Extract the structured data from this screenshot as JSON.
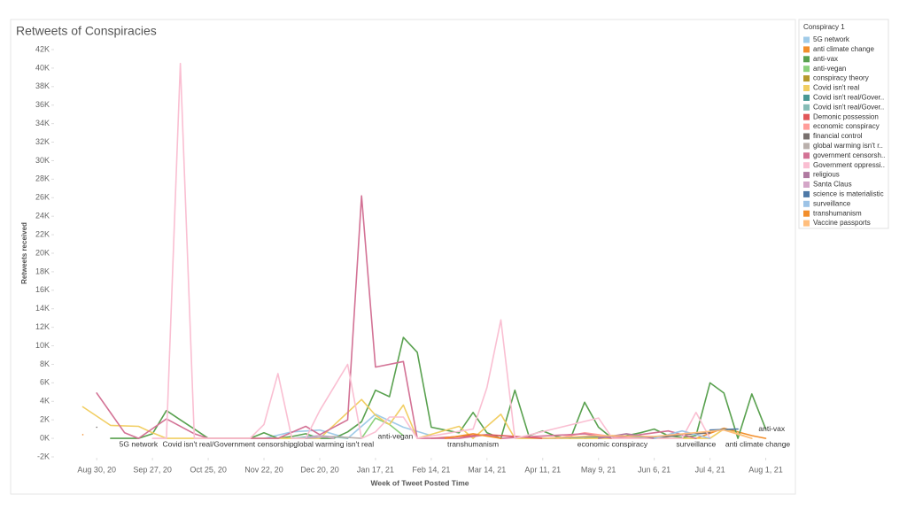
{
  "chart_data": {
    "type": "line",
    "title": "Retweets of Conspiracies",
    "x_label": "Week of Tweet Posted Time",
    "y_label": "Retweets received",
    "legend_title": "Conspiracy 1",
    "xlim": [
      "2020-08-09",
      "2021-08-15"
    ],
    "xticks": [
      {
        "value": "2020-08-30",
        "label": "Aug 30, 20"
      },
      {
        "value": "2020-09-27",
        "label": "Sep 27, 20"
      },
      {
        "value": "2020-10-25",
        "label": "Oct 25, 20"
      },
      {
        "value": "2020-11-22",
        "label": "Nov 22, 20"
      },
      {
        "value": "2020-12-20",
        "label": "Dec 20, 20"
      },
      {
        "value": "2021-01-17",
        "label": "Jan 17, 21"
      },
      {
        "value": "2021-02-14",
        "label": "Feb 14, 21"
      },
      {
        "value": "2021-03-14",
        "label": "Mar 14, 21"
      },
      {
        "value": "2021-04-11",
        "label": "Apr 11, 21"
      },
      {
        "value": "2021-05-09",
        "label": "May 9, 21"
      },
      {
        "value": "2021-06-06",
        "label": "Jun 6, 21"
      },
      {
        "value": "2021-07-04",
        "label": "Jul 4, 21"
      },
      {
        "value": "2021-08-01",
        "label": "Aug 1, 21"
      }
    ],
    "ylim": [
      -2000,
      42000
    ],
    "yticks": [
      {
        "value": -2000,
        "label": "-2K"
      },
      {
        "value": 0,
        "label": "0K"
      },
      {
        "value": 2000,
        "label": "2K"
      },
      {
        "value": 4000,
        "label": "4K"
      },
      {
        "value": 6000,
        "label": "6K"
      },
      {
        "value": 8000,
        "label": "8K"
      },
      {
        "value": 10000,
        "label": "10K"
      },
      {
        "value": 12000,
        "label": "12K"
      },
      {
        "value": 14000,
        "label": "14K"
      },
      {
        "value": 16000,
        "label": "16K"
      },
      {
        "value": 18000,
        "label": "18K"
      },
      {
        "value": 20000,
        "label": "20K"
      },
      {
        "value": 22000,
        "label": "22K"
      },
      {
        "value": 24000,
        "label": "24K"
      },
      {
        "value": 26000,
        "label": "26K"
      },
      {
        "value": 28000,
        "label": "28K"
      },
      {
        "value": 30000,
        "label": "30K"
      },
      {
        "value": 32000,
        "label": "32K"
      },
      {
        "value": 34000,
        "label": "34K"
      },
      {
        "value": 36000,
        "label": "36K"
      },
      {
        "value": 38000,
        "label": "38K"
      },
      {
        "value": 40000,
        "label": "40K"
      },
      {
        "value": 42000,
        "label": "42K"
      }
    ],
    "series": [
      {
        "name": "5G network",
        "color": "#a0cbe8",
        "x": [
          "2020-11-22",
          "2020-12-06",
          "2020-12-20",
          "2021-01-03",
          "2021-01-17",
          "2021-01-31",
          "2021-02-14"
        ],
        "values": [
          0,
          700,
          900,
          0,
          2600,
          1200,
          300
        ]
      },
      {
        "name": "anti climate change",
        "color": "#f28e2b",
        "x": [
          "2021-06-27",
          "2021-07-11",
          "2021-07-25",
          "2021-08-01"
        ],
        "values": [
          0,
          1100,
          300,
          0
        ]
      },
      {
        "name": "anti-vax",
        "color": "#59a14f",
        "x": [
          "2020-09-06",
          "2020-09-13",
          "2020-09-20",
          "2020-09-27",
          "2020-10-04",
          "2020-10-11",
          "2020-10-18",
          "2020-10-25",
          "2020-11-01",
          "2020-11-08",
          "2020-11-15",
          "2020-11-22",
          "2020-11-29",
          "2020-12-06",
          "2020-12-13",
          "2020-12-20",
          "2020-12-27",
          "2021-01-03",
          "2021-01-10",
          "2021-01-17",
          "2021-01-24",
          "2021-01-31",
          "2021-02-07",
          "2021-02-14",
          "2021-02-21",
          "2021-02-28",
          "2021-03-07",
          "2021-03-14",
          "2021-03-21",
          "2021-03-28",
          "2021-04-04",
          "2021-04-11",
          "2021-04-18",
          "2021-04-25",
          "2021-05-02",
          "2021-05-09",
          "2021-05-16",
          "2021-05-23",
          "2021-05-30",
          "2021-06-06",
          "2021-06-13",
          "2021-06-20",
          "2021-06-27",
          "2021-07-04",
          "2021-07-11",
          "2021-07-18",
          "2021-07-25",
          "2021-08-01"
        ],
        "values": [
          0,
          0,
          0,
          500,
          3000,
          2000,
          1000,
          0,
          0,
          0,
          0,
          600,
          0,
          200,
          500,
          0,
          0,
          700,
          1800,
          5200,
          4500,
          10900,
          9300,
          1200,
          900,
          600,
          2800,
          600,
          0,
          5200,
          300,
          800,
          200,
          0,
          3900,
          1200,
          0,
          300,
          600,
          1000,
          300,
          100,
          300,
          6000,
          4900,
          0,
          4800,
          1000
        ]
      },
      {
        "name": "anti-vegan",
        "color": "#8cd17d",
        "x": [
          "2021-01-10",
          "2021-01-17",
          "2021-01-24",
          "2021-01-31"
        ],
        "values": [
          0,
          2200,
          1500,
          300
        ]
      },
      {
        "name": "conspiracy theory",
        "color": "#b6992d",
        "x": [
          "2021-05-02",
          "2021-05-16",
          "2021-05-30",
          "2021-06-13"
        ],
        "values": [
          0,
          300,
          200,
          0
        ]
      },
      {
        "name": "Covid isn't real",
        "color": "#f1ce63",
        "x": [
          "2020-08-23",
          "2020-09-06",
          "2020-09-20",
          "2020-09-27",
          "2020-10-04",
          "2020-12-20",
          "2021-01-10",
          "2021-01-17",
          "2021-01-24",
          "2021-01-31",
          "2021-02-07",
          "2021-02-28",
          "2021-03-07",
          "2021-03-21",
          "2021-03-28",
          "2021-07-04",
          "2021-07-11",
          "2021-07-25"
        ],
        "values": [
          3400,
          1400,
          1300,
          600,
          0,
          0,
          4200,
          2500,
          1500,
          3600,
          0,
          1300,
          0,
          2600,
          0,
          0,
          1000,
          0
        ]
      },
      {
        "name": "Covid isn't real/Gover..",
        "color": "#499894",
        "x": [
          "2021-04-11",
          "2021-05-09",
          "2021-06-06"
        ],
        "values": [
          0,
          200,
          100
        ]
      },
      {
        "name": "Covid isn't real/Gover..",
        "color": "#86bcb6",
        "x": [
          "2020-12-06",
          "2020-12-20",
          "2021-01-03"
        ],
        "values": [
          0,
          300,
          0
        ]
      },
      {
        "name": "Demonic possession",
        "color": "#e15759",
        "x": [
          "2021-02-14",
          "2021-03-14",
          "2021-04-11"
        ],
        "values": [
          0,
          400,
          0
        ]
      },
      {
        "name": "economic conspiracy",
        "color": "#ff9d9a",
        "x": [
          "2021-04-18",
          "2021-05-02",
          "2021-05-16",
          "2021-05-30"
        ],
        "values": [
          0,
          600,
          200,
          0
        ]
      },
      {
        "name": "financial control",
        "color": "#79706e",
        "x": [
          "2020-08-30",
          "2020-09-06",
          "2021-06-06",
          "2021-06-20",
          "2021-07-04"
        ],
        "values": [
          1200,
          null,
          0,
          400,
          600
        ]
      },
      {
        "name": "global warming isn't r..",
        "color": "#bab0ac",
        "x": [
          "2020-12-13",
          "2020-12-27",
          "2021-01-10"
        ],
        "values": [
          0,
          200,
          0
        ]
      },
      {
        "name": "government censorsh..",
        "color": "#d37295",
        "x": [
          "2020-08-30",
          "2020-09-13",
          "2020-09-20",
          "2020-10-04",
          "2020-10-18",
          "2020-10-25",
          "2020-11-29",
          "2020-12-13",
          "2020-12-20",
          "2021-01-03",
          "2021-01-10",
          "2021-01-17",
          "2021-01-31",
          "2021-02-07",
          "2021-02-28",
          "2021-03-14",
          "2021-03-21",
          "2021-05-02",
          "2021-05-16",
          "2021-06-13",
          "2021-06-27"
        ],
        "values": [
          4900,
          600,
          0,
          2100,
          500,
          0,
          0,
          1300,
          400,
          2000,
          26200,
          7700,
          8300,
          0,
          0,
          400,
          0,
          500,
          0,
          800,
          0
        ]
      },
      {
        "name": "Government oppressi..",
        "color": "#fabfd2",
        "x": [
          "2020-09-27",
          "2020-10-04",
          "2020-10-11",
          "2020-10-18",
          "2020-10-25",
          "2020-11-15",
          "2020-11-22",
          "2020-11-29",
          "2020-12-06",
          "2020-12-13",
          "2020-12-20",
          "2021-01-03",
          "2021-01-10",
          "2021-01-17",
          "2021-01-24",
          "2021-01-31",
          "2021-02-07",
          "2021-03-07",
          "2021-03-14",
          "2021-03-21",
          "2021-03-28",
          "2021-05-09",
          "2021-05-16",
          "2021-06-20",
          "2021-06-27",
          "2021-07-04"
        ],
        "values": [
          0,
          0,
          40500,
          0,
          0,
          0,
          1500,
          7000,
          0,
          0,
          3000,
          8000,
          0,
          700,
          2300,
          2300,
          0,
          1000,
          5500,
          12800,
          0,
          2200,
          0,
          0,
          2800,
          0
        ]
      },
      {
        "name": "religious",
        "color": "#b07aa1",
        "x": [
          "2021-05-09",
          "2021-05-23",
          "2021-06-06"
        ],
        "values": [
          0,
          500,
          0
        ]
      },
      {
        "name": "Santa Claus",
        "color": "#d4a6c8",
        "x": [
          "2020-12-13",
          "2020-12-20",
          "2020-12-27"
        ],
        "values": [
          0,
          300,
          0
        ]
      },
      {
        "name": "science is materialistic",
        "color": "#4e79a7",
        "x": [
          "2021-07-04",
          "2021-07-18"
        ],
        "values": [
          900,
          1000
        ]
      },
      {
        "name": "surveillance",
        "color": "#9dc3e6",
        "x": [
          "2021-06-06",
          "2021-06-20",
          "2021-07-04"
        ],
        "values": [
          0,
          800,
          0
        ]
      },
      {
        "name": "transhumanism",
        "color": "#f28e2b",
        "x": [
          "2020-08-23",
          "2020-08-30",
          "2021-02-21",
          "2021-03-07",
          "2021-03-21"
        ],
        "values": [
          400,
          null,
          0,
          500,
          0
        ]
      },
      {
        "name": "Vaccine passports",
        "color": "#ffbe7d",
        "x": [
          "2021-04-11",
          "2021-05-09",
          "2021-06-06",
          "2021-07-11",
          "2021-07-25"
        ],
        "values": [
          0,
          300,
          200,
          900,
          0
        ]
      }
    ],
    "annotations": [
      {
        "text": "5G network",
        "x": "2020-09-20",
        "y": -700
      },
      {
        "text": "Covid isn't real/Government censorship",
        "x": "2020-11-04",
        "y": -700
      },
      {
        "text": "global warming isn't real",
        "x": "2020-12-27",
        "y": -700
      },
      {
        "text": "anti-vegan",
        "x": "2021-01-27",
        "y": 200
      },
      {
        "text": "transhumanism",
        "x": "2021-03-07",
        "y": -700
      },
      {
        "text": "economic conspiracy",
        "x": "2021-05-16",
        "y": -700
      },
      {
        "text": "surveillance",
        "x": "2021-06-27",
        "y": -700
      },
      {
        "text": "anti climate change",
        "x": "2021-07-28",
        "y": -700
      },
      {
        "text": "anti-vax",
        "x": "2021-08-04",
        "y": 1000
      }
    ]
  }
}
